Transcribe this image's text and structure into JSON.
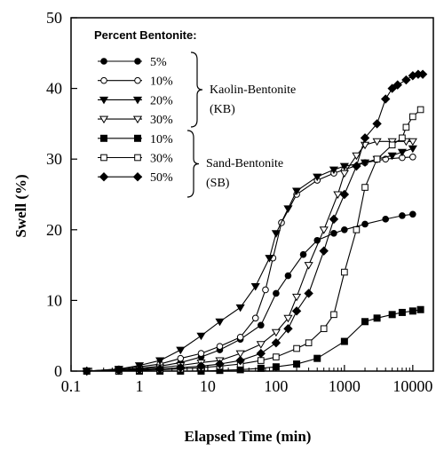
{
  "chart_data": {
    "type": "line",
    "xlabel": "Elapsed Time (min)",
    "ylabel": "Swell (%)",
    "xscale": "log",
    "xlim": [
      0.1,
      20000
    ],
    "ylim": [
      0,
      50
    ],
    "xticks": [
      0.1,
      1,
      10,
      100,
      1000,
      10000
    ],
    "xtick_labels": [
      "0.1",
      "1",
      "10",
      "100",
      "1000",
      "10000"
    ],
    "yticks": [
      0,
      10,
      20,
      30,
      40,
      50
    ],
    "ytick_labels": [
      "0",
      "10",
      "20",
      "30",
      "40",
      "50"
    ],
    "grid": false,
    "legend": {
      "title": "Percent Bentonite:",
      "placement": "top-left",
      "groups": [
        {
          "label_line1": "Kaolin-Bentonite",
          "label_line2": "(KB)",
          "series_index": [
            0,
            1,
            2,
            3
          ]
        },
        {
          "label_line1": "Sand-Bentonite",
          "label_line2": "(SB)",
          "series_index": [
            4,
            5,
            6
          ]
        }
      ]
    },
    "series": [
      {
        "name": "5%",
        "marker": "circle-filled",
        "x": [
          0.17,
          0.5,
          1,
          2,
          4,
          8,
          15,
          30,
          60,
          100,
          150,
          250,
          400,
          700,
          1000,
          2000,
          4000,
          7000,
          10000
        ],
        "y": [
          0,
          0.2,
          0.4,
          0.7,
          1.2,
          2,
          3,
          4.5,
          6.5,
          11,
          13.5,
          16.5,
          18.5,
          19.5,
          20,
          20.8,
          21.5,
          22,
          22.2
        ]
      },
      {
        "name": "10%",
        "marker": "circle-open",
        "x": [
          0.17,
          0.5,
          1,
          2,
          4,
          8,
          15,
          30,
          50,
          70,
          90,
          120,
          200,
          400,
          700,
          1000,
          2000,
          4000,
          7000,
          10000
        ],
        "y": [
          0,
          0.3,
          0.6,
          1,
          1.8,
          2.5,
          3.5,
          4.8,
          7.5,
          11.5,
          16,
          21,
          25,
          27,
          28,
          28.5,
          29.5,
          30,
          30.2,
          30.3
        ]
      },
      {
        "name": "20%",
        "marker": "triangle-down-filled",
        "x": [
          0.17,
          0.5,
          1,
          2,
          4,
          8,
          15,
          30,
          50,
          80,
          100,
          150,
          200,
          400,
          700,
          1000,
          2000,
          3000,
          5000,
          7000,
          10000
        ],
        "y": [
          0,
          0.3,
          0.8,
          1.5,
          3,
          5,
          7,
          9,
          12,
          16,
          19.5,
          23,
          25.5,
          27.5,
          28.5,
          29,
          29.5,
          30,
          30.5,
          31,
          31.5
        ]
      },
      {
        "name": "30%",
        "marker": "triangle-down-open",
        "x": [
          0.17,
          0.5,
          1,
          2,
          4,
          8,
          15,
          30,
          60,
          100,
          150,
          200,
          300,
          500,
          800,
          1000,
          1500,
          2000,
          3000,
          5000,
          8000,
          10000
        ],
        "y": [
          0,
          0.1,
          0.3,
          0.5,
          0.8,
          1.2,
          1.5,
          2.5,
          3.8,
          5.5,
          7.5,
          10.5,
          15,
          20,
          25,
          28,
          30.5,
          32,
          32.5,
          32.5,
          32.5,
          32.5
        ]
      },
      {
        "name": "10%",
        "marker": "square-filled",
        "x": [
          0.17,
          0.5,
          1,
          2,
          4,
          8,
          15,
          30,
          60,
          100,
          200,
          400,
          1000,
          2000,
          3000,
          5000,
          7000,
          10000,
          13000
        ],
        "y": [
          0,
          0,
          0,
          0,
          0,
          0,
          0.1,
          0.2,
          0.4,
          0.6,
          1,
          1.8,
          4.2,
          7,
          7.5,
          8,
          8.3,
          8.5,
          8.7
        ]
      },
      {
        "name": "30%",
        "marker": "square-open",
        "x": [
          0.17,
          0.5,
          1,
          2,
          4,
          8,
          15,
          30,
          60,
          100,
          200,
          300,
          500,
          700,
          1000,
          1500,
          2000,
          3000,
          5000,
          7000,
          8000,
          10000,
          13000
        ],
        "y": [
          0,
          0,
          0.1,
          0.2,
          0.3,
          0.5,
          0.7,
          1,
          1.5,
          2,
          3.2,
          4,
          6,
          8,
          14,
          20,
          26,
          30,
          32,
          33,
          34.5,
          36,
          37
        ]
      },
      {
        "name": "50%",
        "marker": "diamond-filled",
        "x": [
          0.17,
          0.5,
          1,
          2,
          4,
          8,
          15,
          30,
          60,
          100,
          150,
          200,
          300,
          500,
          700,
          1000,
          1500,
          2000,
          3000,
          4000,
          5000,
          6000,
          8000,
          10000,
          12000,
          14000
        ],
        "y": [
          0,
          0.1,
          0.2,
          0.3,
          0.5,
          0.7,
          1,
          1.5,
          2.5,
          4,
          6,
          8.5,
          11,
          17,
          21.5,
          25,
          29,
          33,
          35,
          38.5,
          40,
          40.5,
          41.2,
          41.8,
          42,
          42
        ]
      }
    ]
  }
}
